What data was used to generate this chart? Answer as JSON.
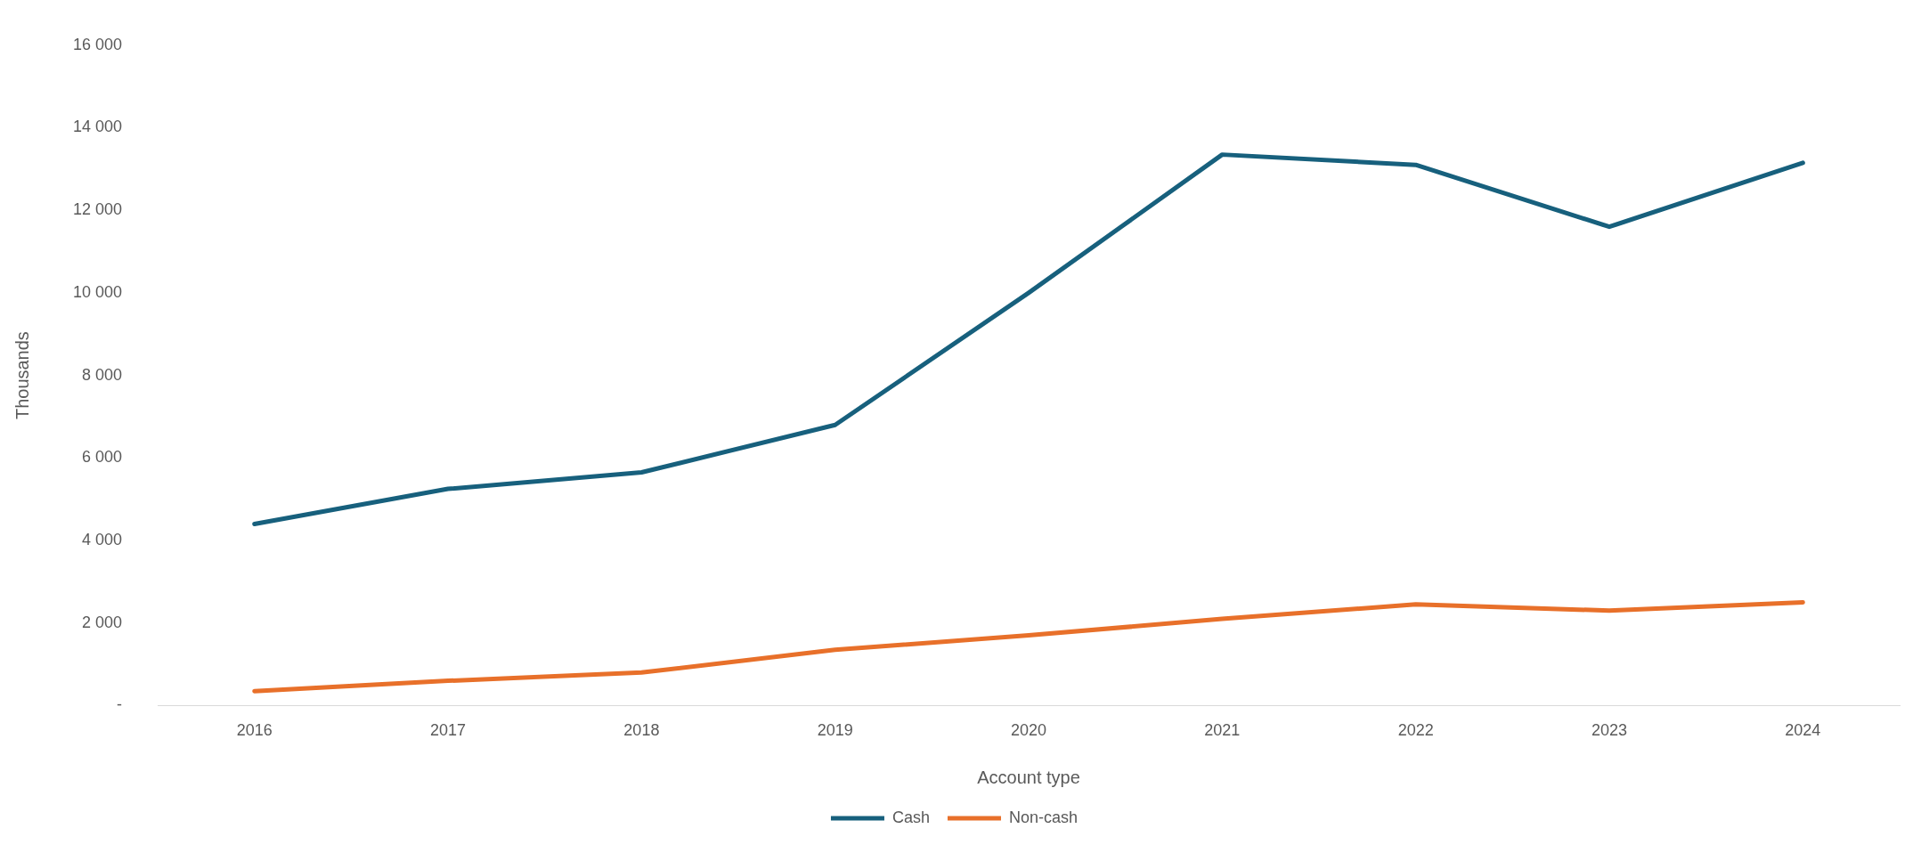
{
  "chart_data": {
    "type": "line",
    "xlabel": "Account type",
    "ylabel": "Thousands",
    "categories": [
      "2016",
      "2017",
      "2018",
      "2019",
      "2020",
      "2021",
      "2022",
      "2023",
      "2024"
    ],
    "series": [
      {
        "name": "Cash",
        "color": "#17607d",
        "values": [
          4400,
          5250,
          5650,
          6800,
          10000,
          13350,
          13100,
          11600,
          13150
        ]
      },
      {
        "name": "Non-cash",
        "color": "#e8702a",
        "values": [
          350,
          600,
          800,
          1350,
          1700,
          2100,
          2450,
          2300,
          2500
        ]
      }
    ],
    "ylim": [
      0,
      16000
    ],
    "yticks": [
      {
        "value": 0,
        "label": "-"
      },
      {
        "value": 2000,
        "label": "2 000"
      },
      {
        "value": 4000,
        "label": "4 000"
      },
      {
        "value": 6000,
        "label": "6 000"
      },
      {
        "value": 8000,
        "label": "8 000"
      },
      {
        "value": 10000,
        "label": "10 000"
      },
      {
        "value": 12000,
        "label": "12 000"
      },
      {
        "value": 14000,
        "label": "14 000"
      },
      {
        "value": 16000,
        "label": "16 000"
      }
    ],
    "grid": false,
    "legend": "bottom",
    "marker": "none",
    "line_style": "solid"
  }
}
